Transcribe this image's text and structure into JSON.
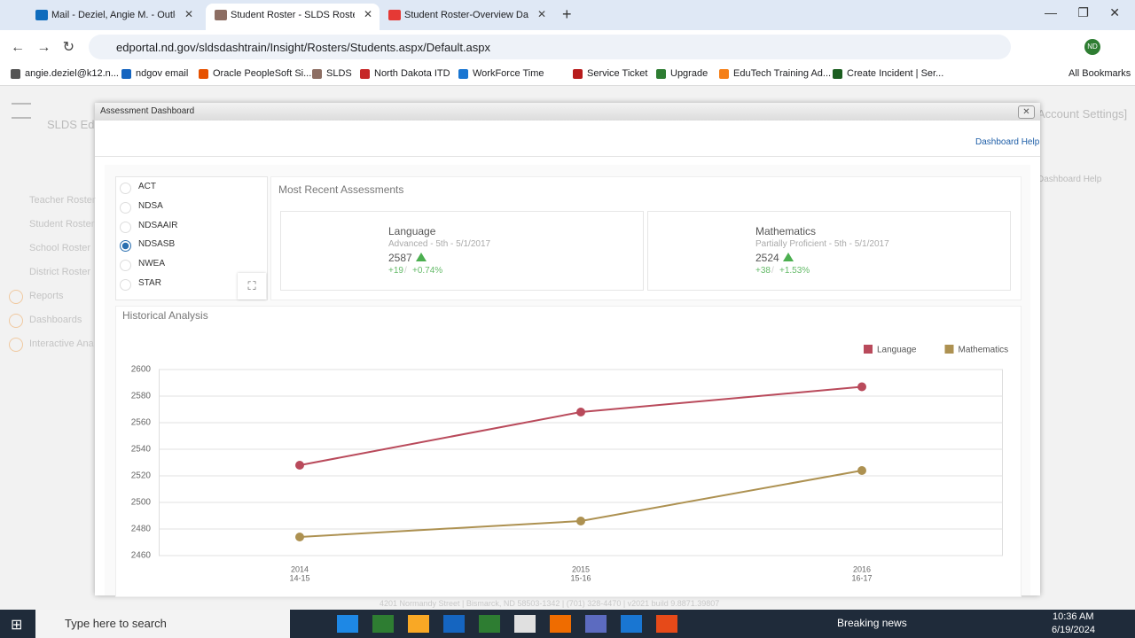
{
  "browser": {
    "tabs": [
      "Mail - Deziel, Angie M. - Outlo",
      "Student Roster - SLDS Rosters F",
      "Student Roster-Overview Dasht"
    ],
    "active_tab": 1,
    "url": "edportal.nd.gov/sldsdashtrain/Insight/Rosters/Students.aspx/Default.aspx",
    "profile": "ND",
    "bookmarks": [
      "angie.deziel@k12.n...",
      "ndgov email",
      "Oracle PeopleSoft Si...",
      "SLDS",
      "North Dakota ITD",
      "WorkForce Time",
      "Service Ticket",
      "Upgrade",
      "EduTech Training Ad...",
      "Create Incident | Ser..."
    ],
    "all_bookmarks": "All Bookmarks"
  },
  "background_page": {
    "brand": "SLDS Edu",
    "account_settings": "Account Settings]",
    "dashboard_help": "Dashboard Help",
    "nav": [
      "Teacher Roster",
      "Student Roster",
      "School Roster",
      "District Roster",
      "Reports",
      "Dashboards",
      "Interactive Ana"
    ],
    "footer": "4201 Normandy Street | Bismarck, ND 58503-1342 | (701) 328-4470 | v2021 build 9.8871.39807"
  },
  "modal": {
    "title": "Assessment Dashboard",
    "dashboard_help": "Dashboard Help",
    "assessments": [
      "ACT",
      "NDSA",
      "NDSAAIR",
      "NDSASB",
      "NWEA",
      "STAR"
    ],
    "selected": 3,
    "most_recent": {
      "title": "Most Recent Assessments",
      "cards": [
        {
          "subject": "Language",
          "detail": "Advanced - 5th - 5/1/2017",
          "score": 2587,
          "change": "+19",
          "separator": "/",
          "percent": "+0.74%"
        },
        {
          "subject": "Mathematics",
          "detail": "Partially Proficient - 5th - 5/1/2017",
          "score": 2524,
          "change": "+38",
          "separator": "/",
          "percent": "+1.53%"
        }
      ]
    }
  },
  "chart_data": {
    "type": "line",
    "title": "Historical Analysis",
    "categories": [
      "2014",
      "2015",
      "2016"
    ],
    "category_sublabels": [
      "14-15",
      "15-16",
      "16-17"
    ],
    "series": [
      {
        "name": "Language",
        "color": "#b94a5b",
        "values": [
          2528,
          2568,
          2587
        ]
      },
      {
        "name": "Mathematics",
        "color": "#ad9151",
        "values": [
          2474,
          2486,
          2524
        ]
      }
    ],
    "ylim": [
      2460,
      2600
    ],
    "yticks": [
      2460,
      2480,
      2500,
      2520,
      2540,
      2560,
      2580,
      2600
    ],
    "grid": true,
    "legend": "top-right"
  },
  "taskbar": {
    "search": "Type here to search",
    "news": "Breaking news",
    "time": "10:36 AM",
    "date": "6/19/2024"
  }
}
